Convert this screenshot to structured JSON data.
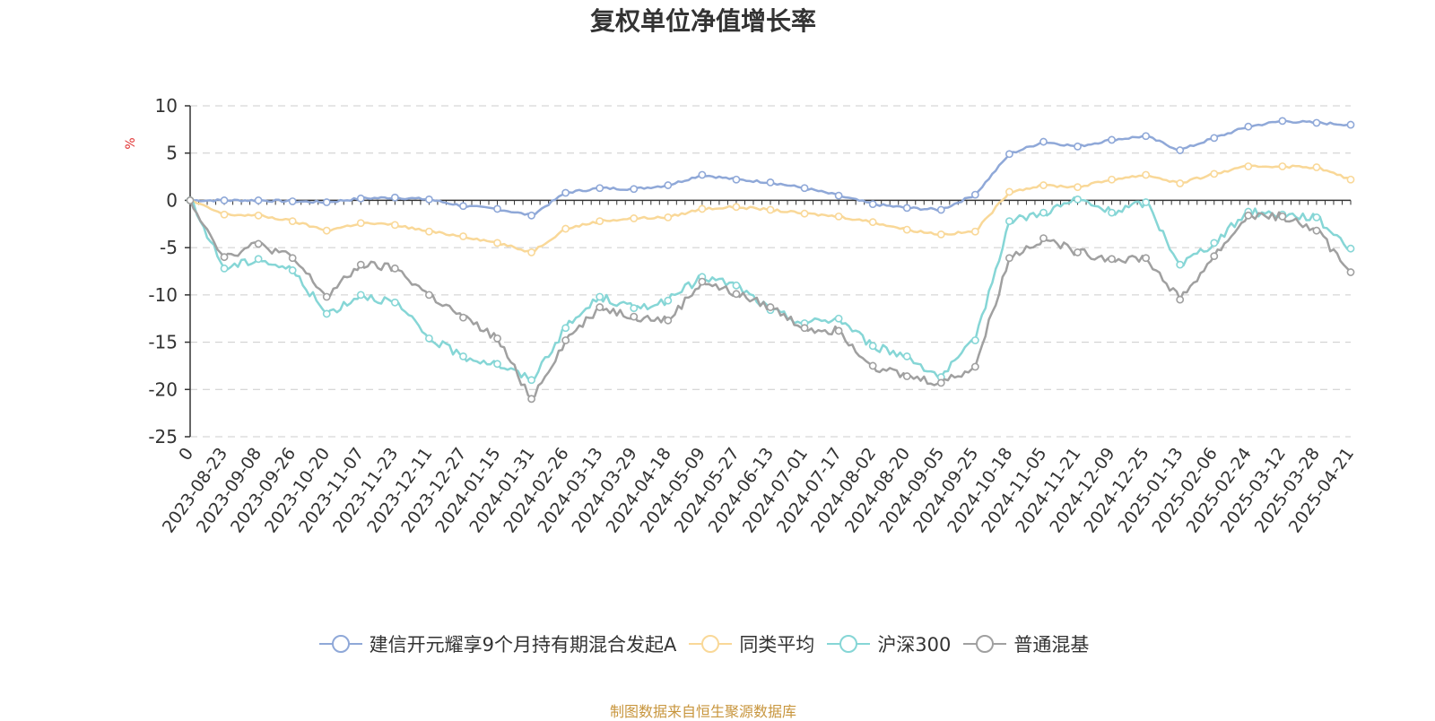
{
  "chart_data": {
    "type": "line",
    "title": "复权单位净值增长率",
    "ylabel": "%",
    "ylim": [
      -25,
      10
    ],
    "yticks": [
      10,
      5,
      0,
      -5,
      -10,
      -15,
      -20,
      -25
    ],
    "grid": "horizontal-dashed",
    "legend_placement": "bottom",
    "x": [
      "0",
      "2023-08-23",
      "2023-09-08",
      "2023-09-26",
      "2023-10-20",
      "2023-11-07",
      "2023-11-23",
      "2023-12-11",
      "2023-12-27",
      "2024-01-15",
      "2024-01-31",
      "2024-02-26",
      "2024-03-13",
      "2024-03-29",
      "2024-04-18",
      "2024-05-09",
      "2024-05-27",
      "2024-06-13",
      "2024-07-01",
      "2024-07-17",
      "2024-08-02",
      "2024-08-20",
      "2024-09-05",
      "2024-09-25",
      "2024-10-18",
      "2024-11-05",
      "2024-11-21",
      "2024-12-09",
      "2024-12-25",
      "2025-01-13",
      "2025-02-06",
      "2025-02-24",
      "2025-03-12",
      "2025-03-28",
      "2025-04-21"
    ],
    "series": [
      {
        "name": "建信开元耀享9个月持有期混合发起A",
        "color": "#8fa8d8",
        "values": [
          0,
          0,
          0,
          -0.1,
          -0.2,
          0.2,
          0.3,
          0.1,
          -0.6,
          -0.9,
          -1.6,
          0.8,
          1.3,
          1.2,
          1.6,
          2.7,
          2.2,
          1.9,
          1.3,
          0.5,
          -0.4,
          -0.8,
          -1.0,
          0.6,
          4.9,
          6.2,
          5.7,
          6.4,
          6.8,
          5.3,
          6.6,
          7.8,
          8.4,
          8.2,
          8.0
        ]
      },
      {
        "name": "同类平均",
        "color": "#f9d898",
        "values": [
          0,
          -1.5,
          -1.6,
          -2.2,
          -3.2,
          -2.4,
          -2.6,
          -3.3,
          -3.8,
          -4.5,
          -5.5,
          -3.0,
          -2.2,
          -1.9,
          -1.8,
          -0.9,
          -0.7,
          -1.0,
          -1.4,
          -1.7,
          -2.3,
          -3.1,
          -3.6,
          -3.3,
          0.9,
          1.6,
          1.4,
          2.2,
          2.7,
          1.8,
          2.8,
          3.6,
          3.6,
          3.5,
          2.2
        ]
      },
      {
        "name": "沪深300",
        "color": "#86d6d6",
        "values": [
          0,
          -7.2,
          -6.2,
          -7.4,
          -12.0,
          -10.0,
          -10.8,
          -14.6,
          -16.5,
          -17.3,
          -19.0,
          -13.5,
          -10.2,
          -11.4,
          -10.6,
          -8.1,
          -9.0,
          -11.6,
          -13.0,
          -12.5,
          -15.4,
          -16.5,
          -18.7,
          -14.8,
          -2.2,
          -1.3,
          0.1,
          -1.3,
          -0.2,
          -6.8,
          -4.5,
          -1.2,
          -1.5,
          -1.8,
          -5.1
        ]
      },
      {
        "name": "普通混基",
        "color": "#a0a0a0",
        "values": [
          0,
          -6.0,
          -4.6,
          -6.1,
          -10.2,
          -6.8,
          -7.2,
          -10.0,
          -12.4,
          -14.6,
          -21.0,
          -14.8,
          -11.3,
          -12.3,
          -12.7,
          -8.6,
          -9.9,
          -11.3,
          -13.5,
          -13.8,
          -17.5,
          -18.6,
          -19.3,
          -17.6,
          -6.1,
          -4.0,
          -5.5,
          -6.2,
          -6.1,
          -10.5,
          -5.9,
          -1.6,
          -1.7,
          -3.2,
          -7.6
        ]
      }
    ]
  },
  "source_note": "制图数据来自恒生聚源数据库"
}
